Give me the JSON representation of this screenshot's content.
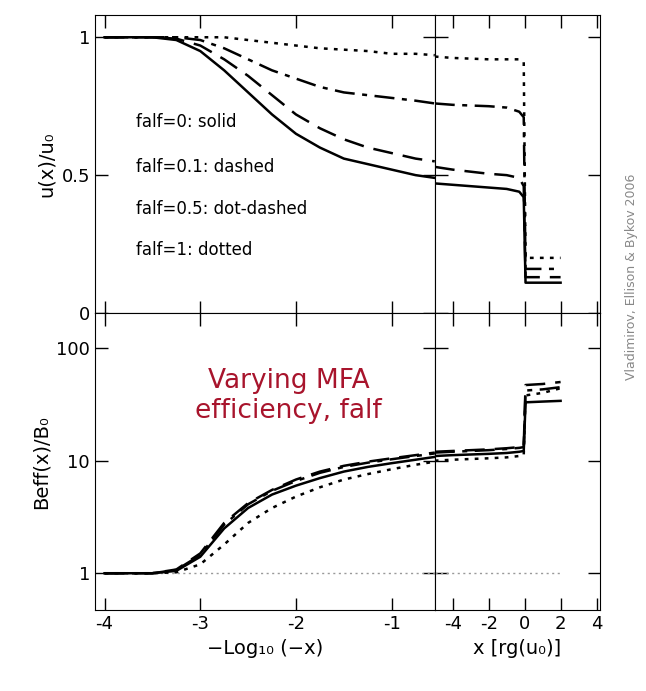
{
  "chart_data": [
    {
      "type": "line",
      "ylabel": "u(x)/u₀",
      "xlim": [
        -4.1,
        -0.55
      ],
      "xticks": [
        -4,
        -3,
        -2,
        -1
      ],
      "ylim": [
        0,
        1.08
      ],
      "yticks": [
        0,
        0.5,
        1
      ],
      "tick_labels": "y",
      "x": [
        -4,
        -3.5,
        -3.25,
        -3,
        -2.75,
        -2.5,
        -2.25,
        -2,
        -1.75,
        -1.5,
        -1.25,
        -1,
        -0.75,
        -0.55
      ],
      "series": [
        {
          "name": "falf=0: solid",
          "color": "#000000",
          "line_style": "solid",
          "values": [
            1,
            1,
            0.99,
            0.95,
            0.88,
            0.8,
            0.72,
            0.65,
            0.6,
            0.56,
            0.54,
            0.52,
            0.5,
            0.49
          ]
        },
        {
          "name": "falf=0.1: dashed",
          "color": "#000000",
          "line_style": "dashed",
          "values": [
            1,
            1,
            0.995,
            0.97,
            0.92,
            0.86,
            0.79,
            0.72,
            0.67,
            0.63,
            0.6,
            0.58,
            0.56,
            0.55
          ]
        },
        {
          "name": "falf=0.5: dot-dashed",
          "color": "#000000",
          "line_style": "dashdot",
          "values": [
            1,
            1,
            1,
            0.99,
            0.96,
            0.92,
            0.88,
            0.85,
            0.82,
            0.8,
            0.79,
            0.78,
            0.77,
            0.76
          ]
        },
        {
          "name": "falf=1: dotted",
          "color": "#000000",
          "line_style": "dotted",
          "values": [
            1,
            1,
            1,
            1,
            1,
            0.99,
            0.98,
            0.97,
            0.96,
            0.955,
            0.95,
            0.94,
            0.94,
            0.935
          ]
        }
      ]
    },
    {
      "type": "line",
      "xlim": [
        -5,
        4.2
      ],
      "xticks": [
        -4,
        -2,
        0,
        2,
        4
      ],
      "ylim": [
        0,
        1.08
      ],
      "yticks": [
        0,
        0.5,
        1
      ],
      "tick_labels": false,
      "x": [
        -5,
        -4,
        -2,
        -1,
        -0.3,
        -0.05,
        0.05,
        1,
        2
      ],
      "series": [
        {
          "color": "#000000",
          "line_style": "solid",
          "values": [
            0.47,
            0.465,
            0.455,
            0.45,
            0.44,
            0.42,
            0.11,
            0.11,
            0.11
          ]
        },
        {
          "color": "#000000",
          "line_style": "dashed",
          "values": [
            0.53,
            0.52,
            0.505,
            0.5,
            0.49,
            0.46,
            0.13,
            0.13,
            0.13
          ]
        },
        {
          "color": "#000000",
          "line_style": "dashdot",
          "values": [
            0.76,
            0.755,
            0.75,
            0.745,
            0.73,
            0.71,
            0.16,
            0.16,
            0.16
          ]
        },
        {
          "color": "#000000",
          "line_style": "dotted",
          "values": [
            0.93,
            0.925,
            0.92,
            0.92,
            0.92,
            0.91,
            0.2,
            0.2,
            0.2
          ]
        }
      ]
    },
    {
      "type": "line",
      "ylabel": "Beff(x)/B₀",
      "xlabel": "−Log₁₀ (−x)",
      "log": "y",
      "xlim": [
        -4.1,
        -0.55
      ],
      "xticks": [
        -4,
        -3,
        -2,
        -1
      ],
      "ylim": [
        0.47,
        205
      ],
      "yticks": [
        1,
        10,
        100
      ],
      "tick_labels": true,
      "x": [
        -4,
        -3.5,
        -3.25,
        -3,
        -2.75,
        -2.5,
        -2.25,
        -2,
        -1.75,
        -1.5,
        -1.25,
        -1,
        -0.75,
        -0.55
      ],
      "series": [
        {
          "color": "#999999",
          "line_style": "dotted",
          "values": [
            1,
            1,
            1,
            1,
            1,
            1,
            1,
            1,
            1,
            1,
            1,
            1,
            1,
            1
          ]
        },
        {
          "color": "#000000",
          "line_style": "solid",
          "values": [
            1,
            1,
            1.05,
            1.4,
            2.5,
            3.8,
            5,
            6,
            7,
            8,
            8.8,
            9.5,
            10.2,
            10.8
          ]
        },
        {
          "color": "#000000",
          "line_style": "dashed",
          "values": [
            1,
            1,
            1.08,
            1.5,
            2.8,
            4.2,
            5.5,
            6.8,
            8,
            9,
            9.8,
            10.5,
            11.2,
            11.8
          ]
        },
        {
          "color": "#000000",
          "line_style": "dashdot",
          "values": [
            1,
            1,
            1.07,
            1.45,
            2.7,
            4.1,
            5.4,
            6.6,
            7.8,
            8.8,
            9.6,
            10.3,
            11,
            11.6
          ]
        },
        {
          "color": "#000000",
          "line_style": "dotted",
          "values": [
            1,
            1,
            1.02,
            1.2,
            1.8,
            2.8,
            3.8,
            4.8,
            5.8,
            6.8,
            7.6,
            8.4,
            9.2,
            9.8
          ]
        }
      ],
      "annotations": [
        {
          "text": "Varying MFA\nefficiency, falf",
          "color": "#a8142c"
        }
      ]
    },
    {
      "type": "line",
      "xlabel": "x [rg(u₀)]",
      "log": "y",
      "xlim": [
        -5,
        4.2
      ],
      "xticks": [
        -4,
        -2,
        0,
        2,
        4
      ],
      "ylim": [
        0.47,
        205
      ],
      "yticks": [
        1,
        10,
        100
      ],
      "tick_labels": "x",
      "x": [
        -5,
        -4,
        -2,
        -1,
        -0.3,
        -0.05,
        0.05,
        1,
        2
      ],
      "series": [
        {
          "color": "#999999",
          "line_style": "dotted",
          "values": [
            1,
            1,
            1,
            1,
            1,
            1,
            1,
            1,
            1
          ]
        },
        {
          "color": "#000000",
          "line_style": "solid",
          "values": [
            11,
            11.2,
            11.5,
            11.7,
            12,
            12.2,
            33,
            33.5,
            34
          ]
        },
        {
          "color": "#000000",
          "line_style": "dashed",
          "values": [
            12,
            12.2,
            12.6,
            12.9,
            13.2,
            13.5,
            47,
            48,
            50
          ]
        },
        {
          "color": "#000000",
          "line_style": "dashdot",
          "values": [
            11.8,
            12,
            12.4,
            12.7,
            13,
            13.2,
            42,
            43,
            45
          ]
        },
        {
          "color": "#000000",
          "line_style": "dotted",
          "values": [
            10,
            10.2,
            10.5,
            10.7,
            11,
            11.2,
            38,
            40,
            44
          ]
        }
      ],
      "annotations": [
        {
          "text": "Vladimirov, Ellison & Bykov 2006",
          "color": "#888888"
        }
      ]
    }
  ]
}
